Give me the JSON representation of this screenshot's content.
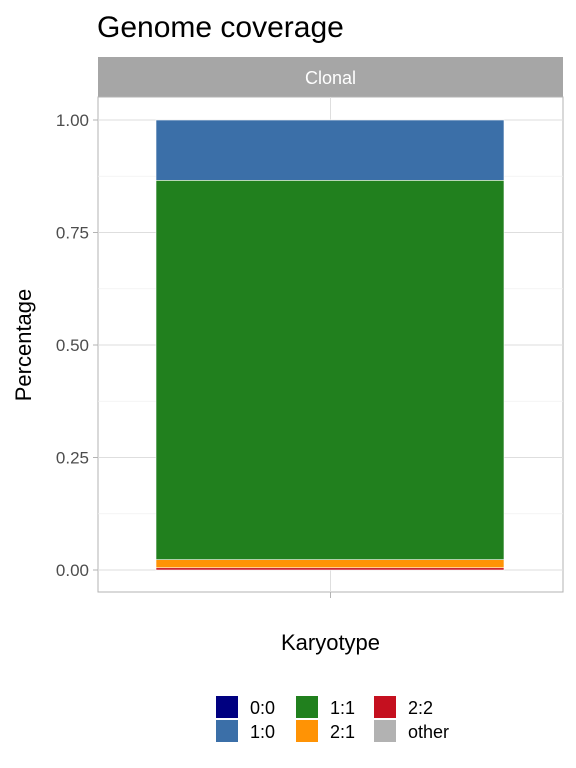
{
  "chart_data": {
    "type": "bar",
    "title": "Genome coverage",
    "facet": "Clonal",
    "xlabel": "Karyotype",
    "ylabel": "Percentage",
    "ylim": [
      0,
      1
    ],
    "y_ticks": [
      "0.00",
      "0.25",
      "0.50",
      "0.75",
      "1.00"
    ],
    "stacked": true,
    "series": [
      {
        "name": "2:2",
        "values": [
          0.005
        ],
        "color": "#C5101F"
      },
      {
        "name": "2:1",
        "values": [
          0.018
        ],
        "color": "#FF9305"
      },
      {
        "name": "1:1",
        "values": [
          0.843
        ],
        "color": "#21801E"
      },
      {
        "name": "1:0",
        "values": [
          0.134
        ],
        "color": "#3B6FA8"
      }
    ],
    "legend": {
      "position": "bottom",
      "items": [
        {
          "label": "0:0",
          "color": "#000080"
        },
        {
          "label": "1:0",
          "color": "#3B6FA8"
        },
        {
          "label": "1:1",
          "color": "#21801E"
        },
        {
          "label": "2:1",
          "color": "#FF9305"
        },
        {
          "label": "2:2",
          "color": "#C5101F"
        },
        {
          "label": "other",
          "color": "#B2B2B2"
        }
      ]
    },
    "grid": true
  }
}
